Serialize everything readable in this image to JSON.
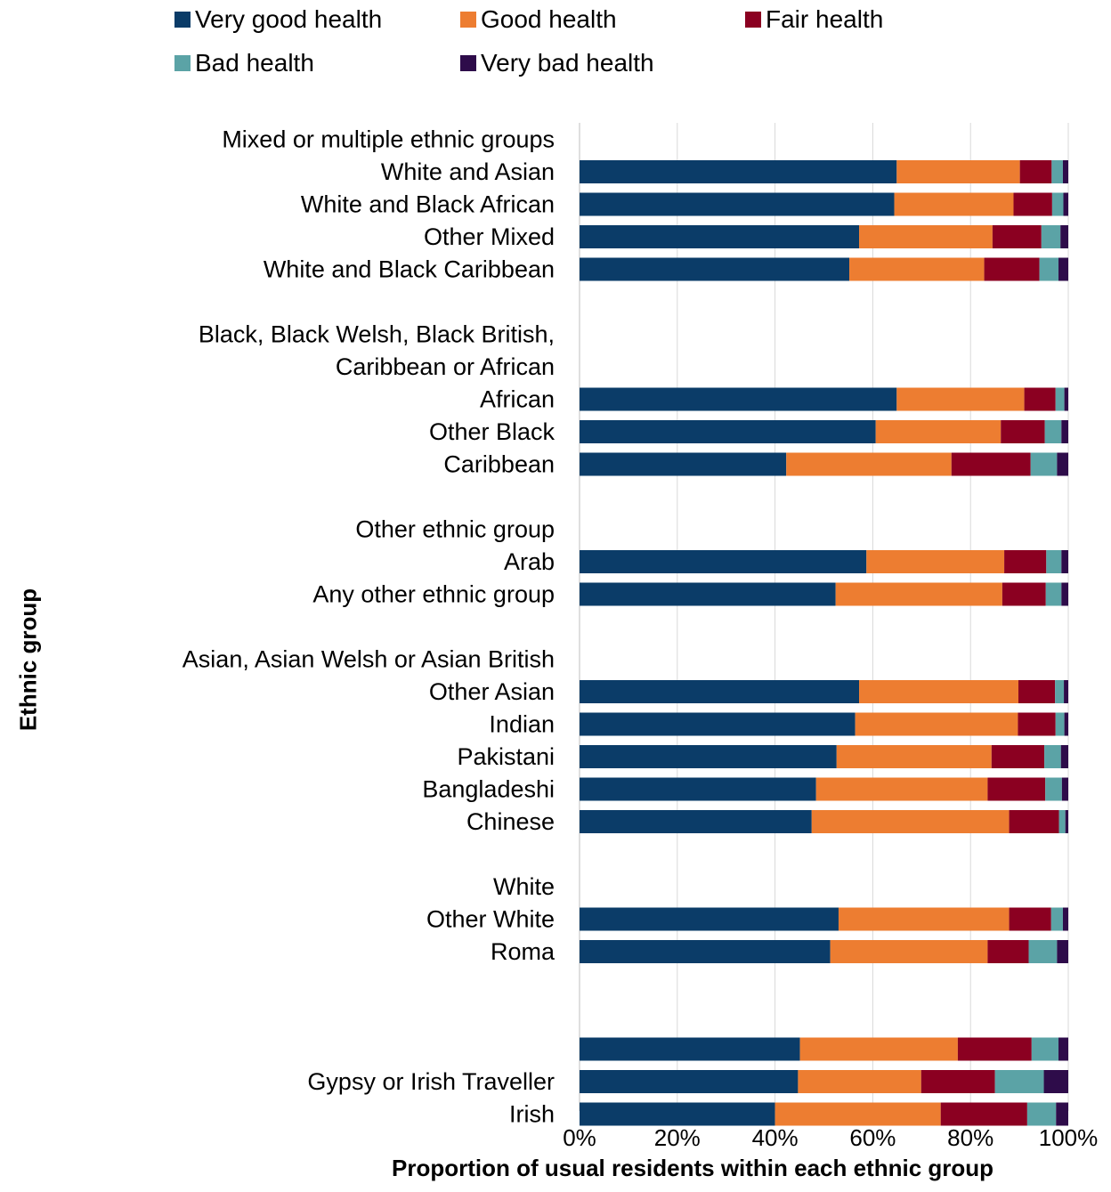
{
  "chart_data": {
    "type": "bar",
    "orientation": "horizontal",
    "stacked": true,
    "xlabel": "Proportion of usual residents within each ethnic group",
    "ylabel": "Ethnic group",
    "xlim": [
      0,
      100
    ],
    "x_ticks": [
      "0%",
      "20%",
      "40%",
      "60%",
      "80%",
      "100%"
    ],
    "grid": "vertical",
    "legend_position": "top",
    "series": [
      {
        "name": "Very good health",
        "color": "#0b3c68"
      },
      {
        "name": "Good health",
        "color": "#ed7d31"
      },
      {
        "name": "Fair health",
        "color": "#8b0021"
      },
      {
        "name": "Bad health",
        "color": "#5ba3a6"
      },
      {
        "name": "Very bad health",
        "color": "#2e0c4a"
      }
    ],
    "groups": [
      {
        "name": "Mixed or multiple ethnic groups",
        "rows": [
          {
            "label": "White and Asian",
            "values": [
              64.9,
              25.2,
              6.5,
              2.3,
              1.1
            ]
          },
          {
            "label": "White and Black African",
            "values": [
              64.4,
              24.4,
              7.9,
              2.3,
              1.0
            ]
          },
          {
            "label": "Other Mixed",
            "values": [
              57.2,
              27.3,
              10.0,
              3.9,
              1.6
            ]
          },
          {
            "label": "White and Black Caribbean",
            "values": [
              55.2,
              27.6,
              11.3,
              3.9,
              2.0
            ]
          }
        ]
      },
      {
        "name": "Black, Black Welsh, Black British,\nCaribbean or African",
        "rows": [
          {
            "label": "African",
            "values": [
              64.9,
              26.1,
              6.4,
              1.8,
              0.8
            ]
          },
          {
            "label": "Other Black",
            "values": [
              60.6,
              25.6,
              9.0,
              3.4,
              1.4
            ]
          },
          {
            "label": "Caribbean",
            "values": [
              42.3,
              33.8,
              16.2,
              5.4,
              2.3
            ]
          }
        ]
      },
      {
        "name": "Other ethnic group",
        "rows": [
          {
            "label": "Arab",
            "values": [
              58.7,
              28.2,
              8.6,
              3.1,
              1.4
            ]
          },
          {
            "label": "Any other ethnic group",
            "values": [
              52.4,
              34.1,
              8.9,
              3.2,
              1.4
            ]
          }
        ]
      },
      {
        "name": "Asian, Asian Welsh or Asian British",
        "rows": [
          {
            "label": "Other Asian",
            "values": [
              57.2,
              32.6,
              7.5,
              1.8,
              0.9
            ]
          },
          {
            "label": "Indian",
            "values": [
              56.4,
              33.3,
              7.7,
              1.8,
              0.8
            ]
          },
          {
            "label": "Pakistani",
            "values": [
              52.6,
              31.7,
              10.8,
              3.4,
              1.5
            ]
          },
          {
            "label": "Bangladeshi",
            "values": [
              48.4,
              35.1,
              11.8,
              3.4,
              1.3
            ]
          },
          {
            "label": "Chinese",
            "values": [
              47.5,
              40.4,
              10.2,
              1.3,
              0.6
            ]
          }
        ]
      },
      {
        "name": "White",
        "rows": [
          {
            "label": "Other White",
            "values": [
              53.0,
              34.9,
              8.6,
              2.4,
              1.1
            ]
          },
          {
            "label": "Roma",
            "values": [
              51.3,
              32.2,
              8.4,
              5.8,
              2.3
            ]
          }
        ]
      },
      {
        "name": "",
        "rows": [
          {
            "label": "",
            "values": [
              45.1,
              32.3,
              15.1,
              5.5,
              2.0
            ]
          },
          {
            "label": "Gypsy or Irish Traveller",
            "values": [
              44.7,
              25.2,
              15.1,
              10.0,
              5.0
            ]
          },
          {
            "label": "Irish",
            "values": [
              40.0,
              33.9,
              17.7,
              5.9,
              2.5
            ]
          }
        ]
      }
    ]
  }
}
